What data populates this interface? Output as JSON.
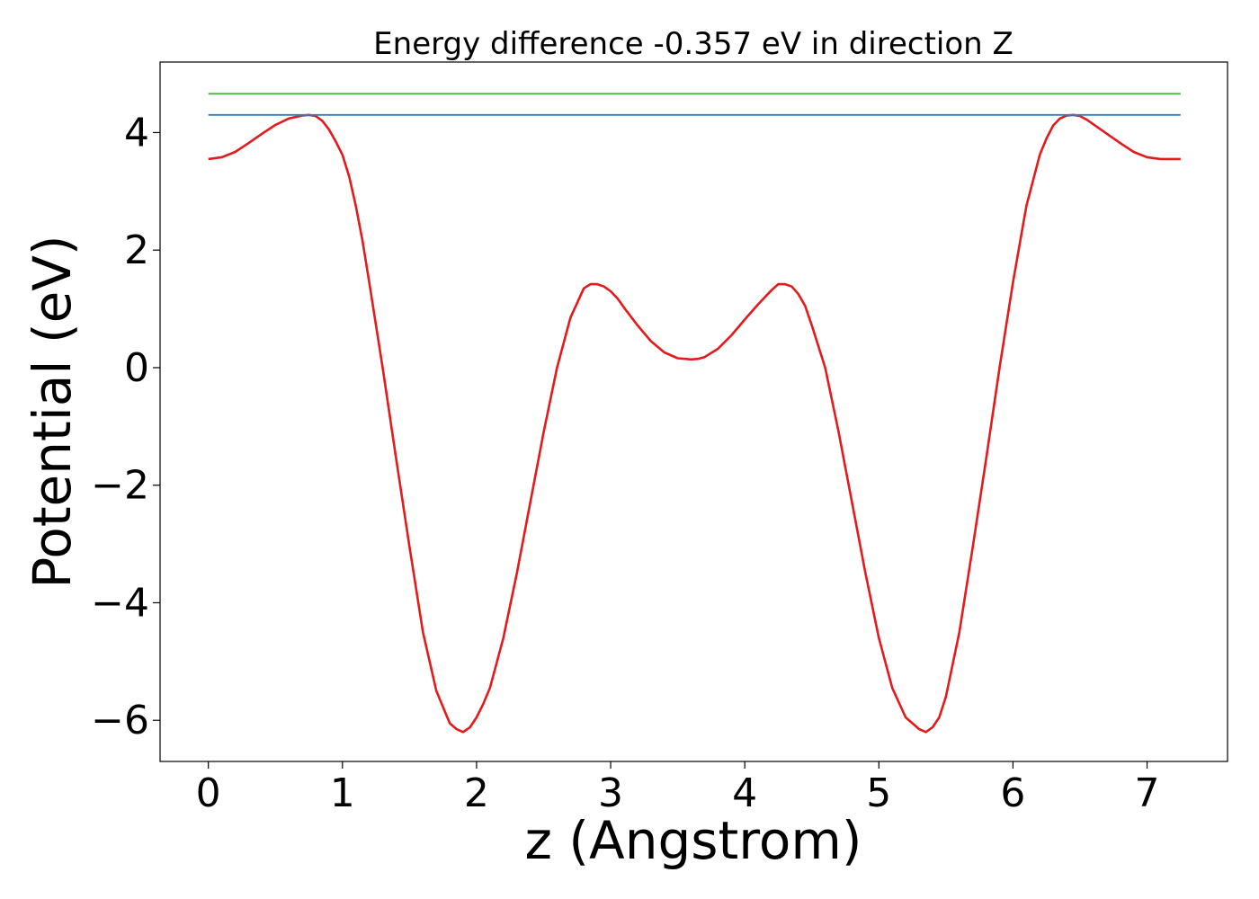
{
  "chart_data": {
    "type": "line",
    "title": "Energy difference -0.357 eV in direction Z",
    "xlabel": "z (Angstrom)",
    "ylabel": "Potential (eV)",
    "xlim": [
      -0.36,
      7.6
    ],
    "ylim": [
      -6.7,
      5.2
    ],
    "xticks": [
      0,
      1,
      2,
      3,
      4,
      5,
      6,
      7
    ],
    "yticks": [
      -6,
      -4,
      -2,
      0,
      2,
      4
    ],
    "xtick_labels": [
      "0",
      "1",
      "2",
      "3",
      "4",
      "5",
      "6",
      "7"
    ],
    "ytick_labels": [
      "−6",
      "−4",
      "−2",
      "0",
      "2",
      "4"
    ],
    "grid": false,
    "legend": "none",
    "series": [
      {
        "color": "#e41a1c",
        "x": [
          0.0,
          0.1,
          0.2,
          0.3,
          0.4,
          0.5,
          0.6,
          0.7,
          0.75,
          0.8,
          0.85,
          0.9,
          0.95,
          1.0,
          1.05,
          1.1,
          1.15,
          1.2,
          1.3,
          1.4,
          1.5,
          1.6,
          1.7,
          1.8,
          1.85,
          1.9,
          1.95,
          2.0,
          2.05,
          2.1,
          2.2,
          2.3,
          2.4,
          2.5,
          2.6,
          2.7,
          2.8,
          2.85,
          2.9,
          2.95,
          3.0,
          3.05,
          3.1,
          3.2,
          3.3,
          3.4,
          3.5,
          3.6,
          3.65,
          3.7,
          3.8,
          3.9,
          4.0,
          4.1,
          4.2,
          4.25,
          4.3,
          4.35,
          4.4,
          4.45,
          4.5,
          4.6,
          4.7,
          4.8,
          4.9,
          5.0,
          5.1,
          5.2,
          5.3,
          5.35,
          5.4,
          5.45,
          5.5,
          5.6,
          5.7,
          5.8,
          5.9,
          6.0,
          6.1,
          6.2,
          6.25,
          6.3,
          6.35,
          6.4,
          6.45,
          6.5,
          6.55,
          6.6,
          6.7,
          6.8,
          6.9,
          7.0,
          7.1,
          7.2,
          7.25
        ],
        "y": [
          3.55,
          3.58,
          3.67,
          3.82,
          3.98,
          4.13,
          4.24,
          4.29,
          4.3,
          4.28,
          4.2,
          4.05,
          3.85,
          3.62,
          3.25,
          2.75,
          2.15,
          1.45,
          0.0,
          -1.55,
          -3.05,
          -4.5,
          -5.5,
          -6.05,
          -6.15,
          -6.2,
          -6.12,
          -5.95,
          -5.72,
          -5.45,
          -4.6,
          -3.5,
          -2.3,
          -1.1,
          0.0,
          0.85,
          1.35,
          1.42,
          1.42,
          1.38,
          1.3,
          1.18,
          1.02,
          0.72,
          0.45,
          0.26,
          0.16,
          0.14,
          0.15,
          0.18,
          0.32,
          0.55,
          0.82,
          1.08,
          1.32,
          1.42,
          1.42,
          1.38,
          1.25,
          1.05,
          0.72,
          0.0,
          -1.1,
          -2.3,
          -3.5,
          -4.6,
          -5.45,
          -5.95,
          -6.15,
          -6.2,
          -6.12,
          -5.95,
          -5.6,
          -4.5,
          -3.05,
          -1.55,
          0.0,
          1.45,
          2.75,
          3.62,
          3.9,
          4.12,
          4.24,
          4.29,
          4.3,
          4.28,
          4.22,
          4.14,
          3.98,
          3.82,
          3.67,
          3.58,
          3.55,
          3.55,
          3.55
        ]
      },
      {
        "color": "#377eb8",
        "x": [
          0.0,
          7.25
        ],
        "y": [
          4.3,
          4.3
        ]
      },
      {
        "color": "#4daf4a",
        "x": [
          0.0,
          7.25
        ],
        "y": [
          4.66,
          4.66
        ]
      }
    ]
  }
}
